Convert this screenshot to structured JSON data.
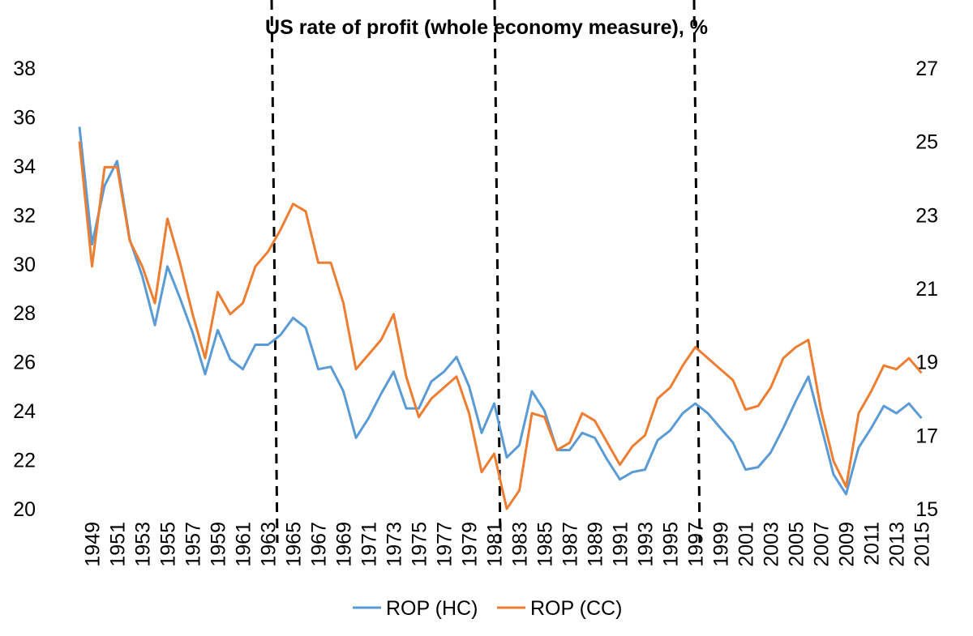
{
  "chart_data": {
    "type": "line",
    "title": "US rate of profit (whole economy measure), %",
    "xlabel": "",
    "ylabel": "",
    "x": [
      1948,
      1949,
      1950,
      1951,
      1952,
      1953,
      1954,
      1955,
      1956,
      1957,
      1958,
      1959,
      1960,
      1961,
      1962,
      1963,
      1964,
      1965,
      1966,
      1967,
      1968,
      1969,
      1970,
      1971,
      1972,
      1973,
      1974,
      1975,
      1976,
      1977,
      1978,
      1979,
      1980,
      1981,
      1982,
      1983,
      1984,
      1985,
      1986,
      1987,
      1988,
      1989,
      1990,
      1991,
      1992,
      1993,
      1994,
      1995,
      1996,
      1997,
      1998,
      1999,
      2000,
      2001,
      2002,
      2003,
      2004,
      2005,
      2006,
      2007,
      2008,
      2009,
      2010,
      2011,
      2012,
      2013,
      2014,
      2015
    ],
    "x_tick_labels": [
      "1949",
      "1951",
      "1953",
      "1955",
      "1957",
      "1959",
      "1961",
      "1963",
      "1965",
      "1967",
      "1969",
      "1971",
      "1973",
      "1975",
      "1977",
      "1979",
      "1981",
      "1983",
      "1985",
      "1987",
      "1989",
      "1991",
      "1993",
      "1995",
      "1997",
      "1999",
      "2001",
      "2003",
      "2005",
      "2007",
      "2009",
      "2011",
      "2013",
      "2015"
    ],
    "y_left": {
      "lim": [
        20,
        38
      ],
      "ticks": [
        "20",
        "22",
        "24",
        "26",
        "28",
        "30",
        "32",
        "34",
        "36",
        "38"
      ]
    },
    "y_right": {
      "lim": [
        15,
        27
      ],
      "ticks": [
        "15",
        "17",
        "19",
        "21",
        "23",
        "25",
        "27"
      ]
    },
    "series": [
      {
        "name": "ROP (HC)",
        "axis": "left",
        "color": "#5b9bd5",
        "values": [
          35.6,
          30.8,
          33.2,
          34.2,
          31.0,
          29.5,
          27.5,
          29.9,
          28.6,
          27.2,
          25.5,
          27.3,
          26.1,
          25.7,
          26.7,
          26.7,
          27.1,
          27.8,
          27.4,
          25.7,
          25.8,
          24.8,
          22.9,
          23.7,
          24.7,
          25.6,
          24.1,
          24.1,
          25.2,
          25.6,
          26.2,
          25.0,
          23.1,
          24.3,
          22.1,
          22.6,
          24.8,
          24.0,
          22.4,
          22.4,
          23.1,
          22.9,
          22.0,
          21.2,
          21.5,
          21.6,
          22.8,
          23.2,
          23.9,
          24.3,
          23.9,
          23.3,
          22.7,
          21.6,
          21.7,
          22.3,
          23.3,
          24.4,
          25.4,
          23.4,
          21.4,
          20.6,
          22.5,
          23.3,
          24.2,
          23.9,
          24.3,
          23.7
        ]
      },
      {
        "name": "ROP (CC)",
        "axis": "right",
        "color": "#ed7d31",
        "values": [
          25.0,
          21.6,
          24.3,
          24.3,
          22.3,
          21.6,
          20.6,
          22.9,
          21.7,
          20.3,
          19.1,
          20.9,
          20.3,
          20.6,
          21.6,
          22.0,
          22.6,
          23.3,
          23.1,
          21.7,
          21.7,
          20.6,
          18.8,
          19.2,
          19.6,
          20.3,
          18.6,
          17.5,
          18.0,
          18.3,
          18.6,
          17.6,
          16.0,
          16.5,
          15.0,
          15.5,
          17.6,
          17.5,
          16.6,
          16.8,
          17.6,
          17.4,
          16.8,
          16.2,
          16.7,
          17.0,
          18.0,
          18.3,
          18.9,
          19.4,
          19.1,
          18.8,
          18.5,
          17.7,
          17.8,
          18.3,
          19.1,
          19.4,
          19.6,
          17.7,
          16.3,
          15.6,
          17.6,
          18.2,
          18.9,
          18.8,
          19.1,
          18.7
        ]
      }
    ],
    "vlines_between": [
      [
        1964,
        1965
      ],
      [
        1982,
        1983
      ],
      [
        1997,
        1998
      ]
    ],
    "legend_position": "bottom",
    "grid": false
  }
}
